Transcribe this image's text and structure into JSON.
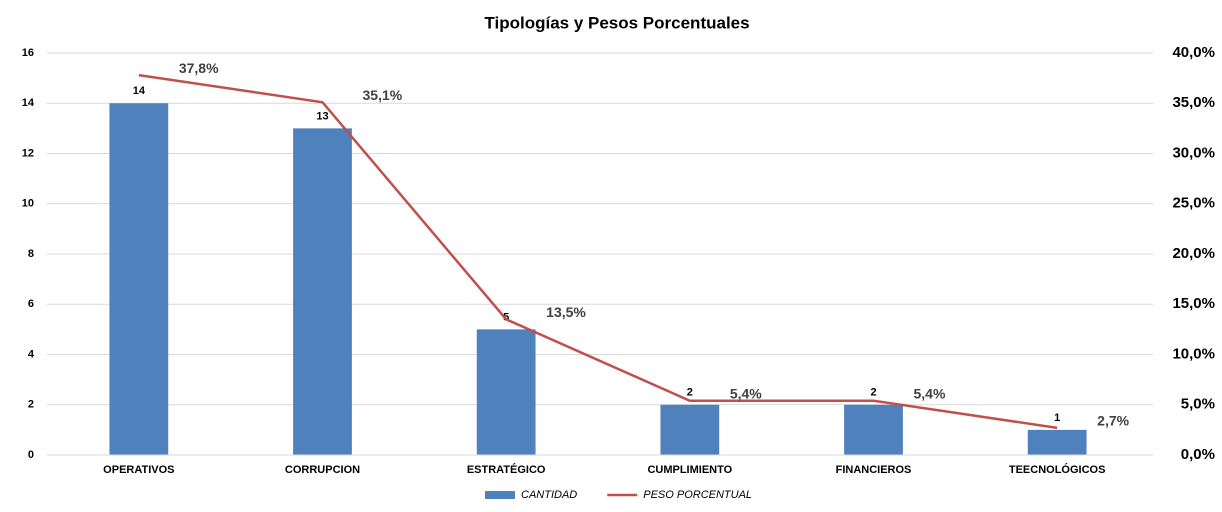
{
  "chart_data": {
    "type": "combo",
    "title": "Tipologías y Pesos Porcentuales",
    "categories": [
      "OPERATIVOS",
      "CORRUPCION",
      "ESTRATÉGICO",
      "CUMPLIMIENTO",
      "FINANCIEROS",
      "TEECNOLÓGICOS"
    ],
    "series": [
      {
        "name": "CANTIDAD",
        "type": "bar",
        "color": "#4f81bd",
        "values": [
          14,
          13,
          5,
          2,
          2,
          1
        ]
      },
      {
        "name": "PESO PORCENTUAL",
        "type": "line",
        "axis": "y2",
        "color": "#c0504d",
        "values": [
          37.8,
          35.1,
          13.5,
          5.4,
          5.4,
          2.7
        ],
        "value_labels": [
          "37,8%",
          "35,1%",
          "13,5%",
          "5,4%",
          "5,4%",
          "2,7%"
        ]
      }
    ],
    "ylim": [
      0,
      16
    ],
    "yticks": [
      0,
      2,
      4,
      6,
      8,
      10,
      12,
      14,
      16
    ],
    "y2lim": [
      0,
      40
    ],
    "y2ticks": [
      {
        "value": 0,
        "label": "0,0%"
      },
      {
        "value": 5,
        "label": "5,0%"
      },
      {
        "value": 10,
        "label": "10,0%"
      },
      {
        "value": 15,
        "label": "15,0%"
      },
      {
        "value": 20,
        "label": "20,0%"
      },
      {
        "value": 25,
        "label": "25,0%"
      },
      {
        "value": 30,
        "label": "30,0%"
      },
      {
        "value": 35,
        "label": "35,0%"
      },
      {
        "value": 40,
        "label": "40,0%"
      }
    ],
    "grid": true,
    "legend": "bottom"
  }
}
